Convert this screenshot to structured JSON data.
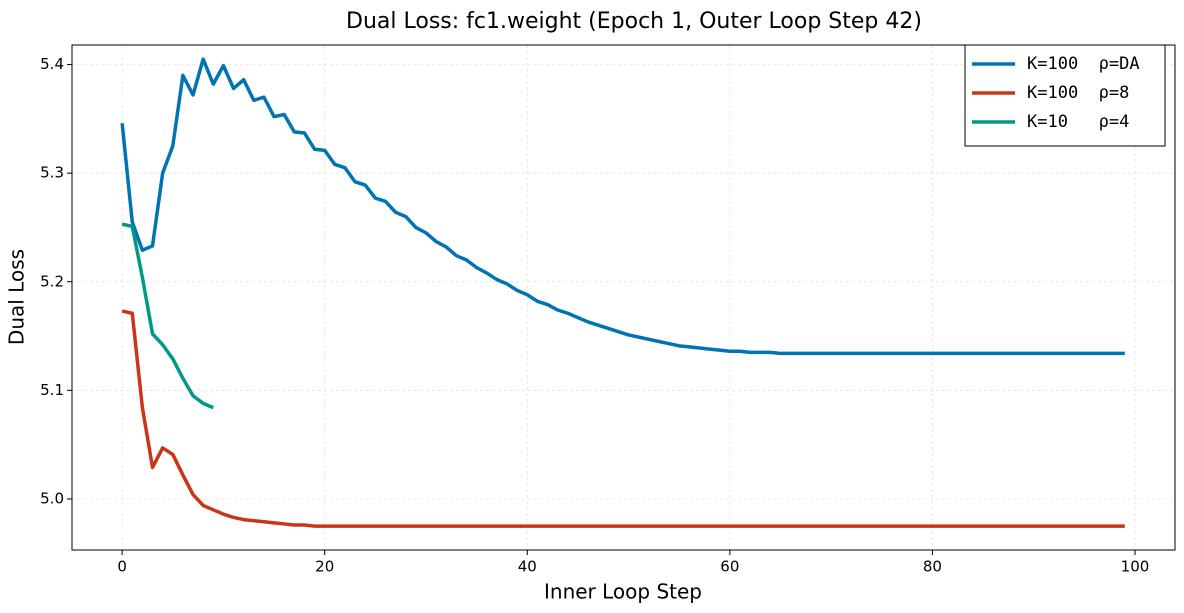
{
  "chart_data": {
    "type": "line",
    "title": "Dual Loss: fc1.weight (Epoch 1, Outer Loop Step 42)",
    "xlabel": "Inner Loop Step",
    "ylabel": "Dual Loss",
    "xlim": [
      -4.95,
      103.95
    ],
    "ylim": [
      4.953,
      5.418
    ],
    "xticks": [
      0,
      20,
      40,
      60,
      80,
      100
    ],
    "yticks": [
      {
        "value": 5.0,
        "label": "5.0"
      },
      5.1,
      5.2,
      5.3,
      5.4
    ],
    "grid": true,
    "legend": "upper right",
    "series": [
      {
        "name": "K=100  ρ=DA",
        "color": "#0173b2",
        "x": [
          0,
          1,
          2,
          3,
          4,
          5,
          6,
          7,
          8,
          9,
          10,
          11,
          12,
          13,
          14,
          15,
          16,
          17,
          18,
          19,
          20,
          21,
          22,
          23,
          24,
          25,
          26,
          27,
          28,
          29,
          30,
          31,
          32,
          33,
          34,
          35,
          36,
          37,
          38,
          39,
          40,
          41,
          42,
          43,
          44,
          45,
          46,
          47,
          48,
          49,
          50,
          51,
          52,
          53,
          54,
          55,
          56,
          57,
          58,
          59,
          60,
          61,
          62,
          63,
          64,
          65,
          66,
          67,
          68,
          69,
          70,
          71,
          72,
          73,
          74,
          75,
          76,
          77,
          78,
          79,
          80,
          81,
          82,
          83,
          84,
          85,
          86,
          87,
          88,
          89,
          90,
          91,
          92,
          93,
          94,
          95,
          96,
          97,
          98,
          99
        ],
        "values": [
          5.346,
          5.255,
          5.229,
          5.233,
          5.3,
          5.325,
          5.39,
          5.372,
          5.405,
          5.382,
          5.399,
          5.378,
          5.386,
          5.367,
          5.37,
          5.352,
          5.354,
          5.338,
          5.337,
          5.322,
          5.321,
          5.308,
          5.305,
          5.292,
          5.289,
          5.277,
          5.274,
          5.264,
          5.26,
          5.25,
          5.245,
          5.237,
          5.232,
          5.224,
          5.22,
          5.213,
          5.208,
          5.202,
          5.198,
          5.192,
          5.188,
          5.182,
          5.179,
          5.174,
          5.171,
          5.167,
          5.163,
          5.16,
          5.157,
          5.154,
          5.151,
          5.149,
          5.147,
          5.145,
          5.143,
          5.141,
          5.14,
          5.139,
          5.138,
          5.137,
          5.136,
          5.136,
          5.135,
          5.135,
          5.135,
          5.134,
          5.134,
          5.134,
          5.134,
          5.134,
          5.134,
          5.134,
          5.134,
          5.134,
          5.134,
          5.134,
          5.134,
          5.134,
          5.134,
          5.134,
          5.134,
          5.134,
          5.134,
          5.134,
          5.134,
          5.134,
          5.134,
          5.134,
          5.134,
          5.134,
          5.134,
          5.134,
          5.134,
          5.134,
          5.134,
          5.134,
          5.134,
          5.134,
          5.134,
          5.134
        ]
      },
      {
        "name": "K=100  ρ=8",
        "color": "#c8361a",
        "x": [
          0,
          1,
          2,
          3,
          4,
          5,
          6,
          7,
          8,
          9,
          10,
          11,
          12,
          13,
          14,
          15,
          16,
          17,
          18,
          19,
          20,
          21,
          22,
          23,
          24,
          25,
          26,
          27,
          28,
          29,
          30,
          31,
          32,
          33,
          34,
          35,
          36,
          37,
          38,
          39,
          40,
          41,
          42,
          43,
          44,
          45,
          46,
          47,
          48,
          49,
          50,
          51,
          52,
          53,
          54,
          55,
          56,
          57,
          58,
          59,
          60,
          61,
          62,
          63,
          64,
          65,
          66,
          67,
          68,
          69,
          70,
          71,
          72,
          73,
          74,
          75,
          76,
          77,
          78,
          79,
          80,
          81,
          82,
          83,
          84,
          85,
          86,
          87,
          88,
          89,
          90,
          91,
          92,
          93,
          94,
          95,
          96,
          97,
          98,
          99
        ],
        "values": [
          5.173,
          5.171,
          5.084,
          5.029,
          5.047,
          5.041,
          5.022,
          5.004,
          4.994,
          4.99,
          4.986,
          4.983,
          4.981,
          4.98,
          4.979,
          4.978,
          4.977,
          4.976,
          4.976,
          4.975,
          4.975,
          4.975,
          4.975,
          4.975,
          4.975,
          4.975,
          4.975,
          4.975,
          4.975,
          4.975,
          4.975,
          4.975,
          4.975,
          4.975,
          4.975,
          4.975,
          4.975,
          4.975,
          4.975,
          4.975,
          4.975,
          4.975,
          4.975,
          4.975,
          4.975,
          4.975,
          4.975,
          4.975,
          4.975,
          4.975,
          4.975,
          4.975,
          4.975,
          4.975,
          4.975,
          4.975,
          4.975,
          4.975,
          4.975,
          4.975,
          4.975,
          4.975,
          4.975,
          4.975,
          4.975,
          4.975,
          4.975,
          4.975,
          4.975,
          4.975,
          4.975,
          4.975,
          4.975,
          4.975,
          4.975,
          4.975,
          4.975,
          4.975,
          4.975,
          4.975,
          4.975,
          4.975,
          4.975,
          4.975,
          4.975,
          4.975,
          4.975,
          4.975,
          4.975,
          4.975,
          4.975,
          4.975,
          4.975,
          4.975,
          4.975,
          4.975,
          4.975,
          4.975,
          4.975,
          4.975
        ]
      },
      {
        "name": "K=10   ρ=4",
        "color": "#009988",
        "x": [
          0,
          1,
          2,
          3,
          4,
          5,
          6,
          7,
          8,
          9
        ],
        "values": [
          5.253,
          5.251,
          5.204,
          5.152,
          5.142,
          5.129,
          5.111,
          5.095,
          5.088,
          5.084
        ]
      }
    ]
  }
}
